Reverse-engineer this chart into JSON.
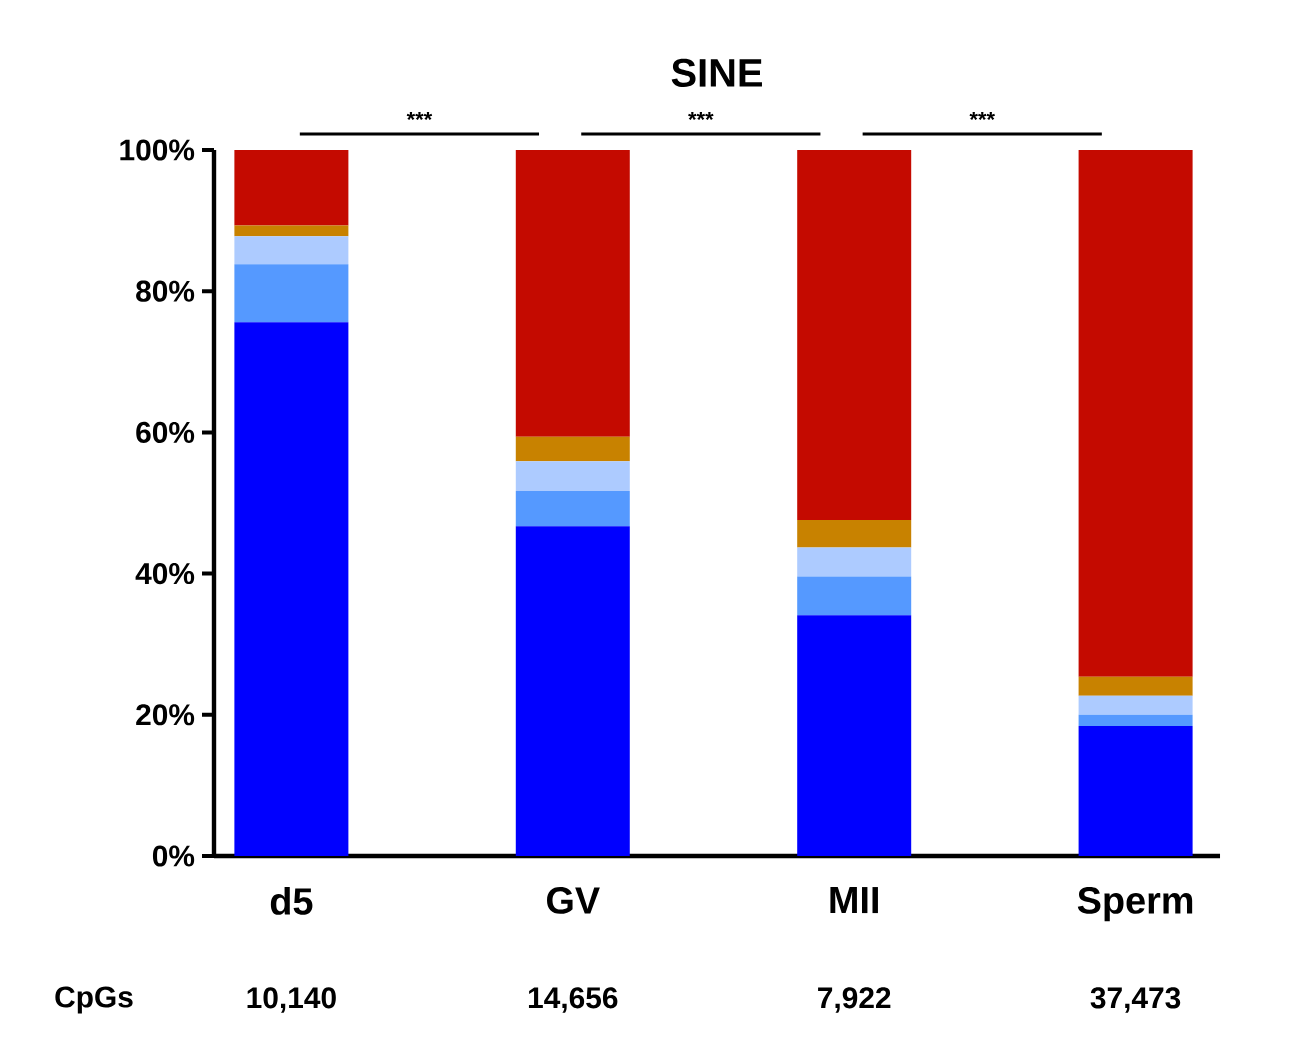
{
  "chart_data": {
    "type": "bar",
    "title": "SINE",
    "stacked": true,
    "categories": [
      "d5",
      "GV",
      "MII",
      "Sperm"
    ],
    "series": [
      {
        "color": "#0000ff",
        "values": [
          75.6,
          46.7,
          34.1,
          18.4
        ]
      },
      {
        "color": "#5599ff",
        "values": [
          8.2,
          5.0,
          5.5,
          1.6
        ]
      },
      {
        "color": "#adcbff",
        "values": [
          4.0,
          4.2,
          4.1,
          2.7
        ]
      },
      {
        "color": "#c88200",
        "values": [
          1.5,
          3.5,
          3.9,
          2.7
        ]
      },
      {
        "color": "#c40a00",
        "values": [
          10.7,
          40.6,
          52.4,
          74.6
        ]
      }
    ],
    "ylim": [
      0,
      100
    ],
    "yticks": [
      {
        "value": 0,
        "label": "0%"
      },
      {
        "value": 20,
        "label": "20%"
      },
      {
        "value": 40,
        "label": "40%"
      },
      {
        "value": 60,
        "label": "60%"
      },
      {
        "value": 80,
        "label": "80%"
      },
      {
        "value": 100,
        "label": "100%"
      }
    ],
    "annotations": [
      "***",
      "***",
      "***",
      "CpGs",
      "10,140",
      "14,656",
      "7,922",
      "37,473"
    ]
  }
}
